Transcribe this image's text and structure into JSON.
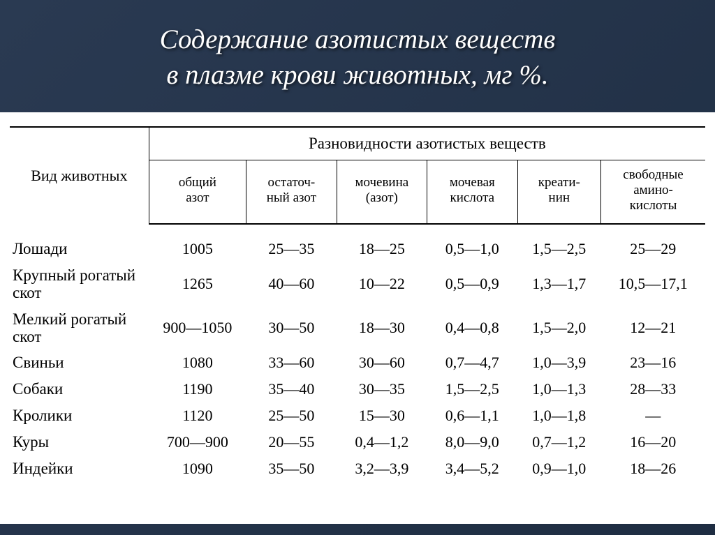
{
  "title_line1": "Содержание азотистых веществ",
  "title_line2": "в плазме крови животных, мг %.",
  "header": {
    "species": "Вид животных",
    "group": "Разновидности азотистых веществ",
    "cols": [
      "общий\nазот",
      "остаточ-\nный азот",
      "мочевина\n(азот)",
      "мочевая\nкислота",
      "креати-\nнин",
      "свободные\nамино-\nкислоты"
    ]
  },
  "rows": [
    {
      "label": "Лошади",
      "v": [
        "1005",
        "25—35",
        "18—25",
        "0,5—1,0",
        "1,5—2,5",
        "25—29"
      ]
    },
    {
      "label": "Крупный рогатый скот",
      "v": [
        "1265",
        "40—60",
        "10—22",
        "0,5—0,9",
        "1,3—1,7",
        "10,5—17,1"
      ]
    },
    {
      "label": "Мелкий рогатый скот",
      "v": [
        "900—1050",
        "30—50",
        "18—30",
        "0,4—0,8",
        "1,5—2,0",
        "12—21"
      ]
    },
    {
      "label": "Свиньи",
      "v": [
        "1080",
        "33—60",
        "30—60",
        "0,7—4,7",
        "1,0—3,9",
        "23—16"
      ]
    },
    {
      "label": "Собаки",
      "v": [
        "1190",
        "35—40",
        "30—35",
        "1,5—2,5",
        "1,0—1,3",
        "28—33"
      ]
    },
    {
      "label": "Кролики",
      "v": [
        "1120",
        "25—50",
        "15—30",
        "0,6—1,1",
        "1,0—1,8",
        "—"
      ]
    },
    {
      "label": "Куры",
      "v": [
        "700—900",
        "20—55",
        "0,4—1,2",
        "8,0—9,0",
        "0,7—1,2",
        "16—20"
      ]
    },
    {
      "label": "Индейки",
      "v": [
        "1090",
        "35—50",
        "3,2—3,9",
        "3,4—5,2",
        "0,9—1,0",
        "18—26"
      ]
    }
  ],
  "colors": {
    "background_gradient_from": "#2a3a52",
    "background_gradient_to": "#1e2d42",
    "table_bg": "#ffffff",
    "text": "#000000",
    "title": "#ffffff"
  },
  "typography": {
    "title_fontsize": 39,
    "header_fontsize": 22,
    "subheader_fontsize": 19,
    "body_fontsize": 22
  },
  "column_widths_pct": [
    20,
    14,
    13,
    13,
    13,
    12,
    15
  ]
}
